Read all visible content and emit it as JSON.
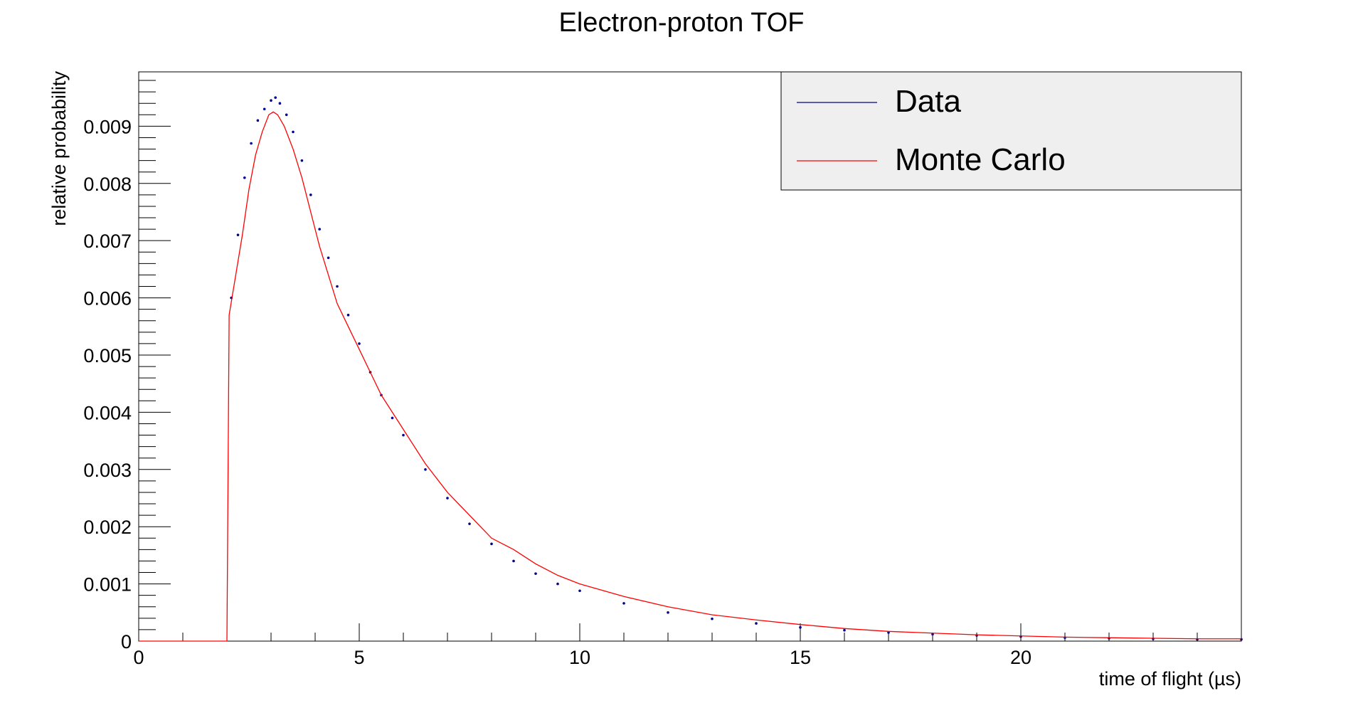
{
  "chart_data": {
    "type": "line",
    "title": "Electron-proton TOF",
    "xlabel": "time of flight (µs)",
    "ylabel": "relative probability",
    "xlim": [
      0,
      25
    ],
    "ylim": [
      0,
      0.00995
    ],
    "grid": false,
    "legend_position": "top-right",
    "x_tick_labels": [
      "0",
      "5",
      "10",
      "15",
      "20"
    ],
    "y_tick_labels": [
      "0",
      "0.001",
      "0.002",
      "0.003",
      "0.004",
      "0.005",
      "0.006",
      "0.007",
      "0.008",
      "0.009"
    ],
    "series": [
      {
        "name": "Data",
        "style": "markers",
        "color": "#00008b",
        "x": [
          2.1,
          2.25,
          2.4,
          2.55,
          2.7,
          2.85,
          3.0,
          3.1,
          3.2,
          3.35,
          3.5,
          3.7,
          3.9,
          4.1,
          4.3,
          4.5,
          4.75,
          5.0,
          5.25,
          5.5,
          5.75,
          6.0,
          6.5,
          7.0,
          7.5,
          8.0,
          8.5,
          9.0,
          9.5,
          10.0,
          11.0,
          12.0,
          13.0,
          14.0,
          15.0,
          16.0,
          17.0,
          18.0,
          19.0,
          20.0,
          21.0,
          22.0,
          23.0,
          24.0,
          25.0
        ],
        "y": [
          0.006,
          0.0071,
          0.0081,
          0.0087,
          0.0091,
          0.0093,
          0.00945,
          0.0095,
          0.0094,
          0.0092,
          0.0089,
          0.0084,
          0.0078,
          0.0072,
          0.0067,
          0.0062,
          0.0057,
          0.0052,
          0.0047,
          0.0043,
          0.0039,
          0.0036,
          0.003,
          0.0025,
          0.00205,
          0.0017,
          0.0014,
          0.00118,
          0.001,
          0.00088,
          0.00066,
          0.0005,
          0.00039,
          0.00031,
          0.00024,
          0.00019,
          0.00015,
          0.00012,
          0.0001,
          8e-05,
          6e-05,
          5e-05,
          4e-05,
          3e-05,
          3e-05
        ]
      },
      {
        "name": "Monte Carlo",
        "style": "line",
        "color": "#ff0000",
        "x": [
          0,
          2.0,
          2.05,
          2.2,
          2.35,
          2.5,
          2.65,
          2.8,
          2.95,
          3.05,
          3.15,
          3.3,
          3.5,
          3.7,
          3.9,
          4.1,
          4.3,
          4.5,
          4.75,
          5.0,
          5.25,
          5.5,
          5.75,
          6.0,
          6.5,
          7.0,
          7.5,
          8.0,
          8.5,
          9.0,
          9.5,
          10.0,
          11.0,
          12.0,
          13.0,
          14.0,
          15.0,
          16.0,
          17.0,
          18.0,
          19.0,
          20.0,
          21.0,
          22.0,
          23.0,
          24.0,
          25.0
        ],
        "y": [
          0,
          0,
          0.0057,
          0.0064,
          0.0071,
          0.0079,
          0.0085,
          0.0089,
          0.0092,
          0.00925,
          0.0092,
          0.009,
          0.0086,
          0.0081,
          0.0075,
          0.0069,
          0.0064,
          0.0059,
          0.0055,
          0.0051,
          0.0047,
          0.0043,
          0.004,
          0.0037,
          0.0031,
          0.0026,
          0.0022,
          0.0018,
          0.0016,
          0.00135,
          0.00115,
          0.001,
          0.00078,
          0.0006,
          0.00046,
          0.00037,
          0.00029,
          0.00022,
          0.00017,
          0.00014,
          0.00011,
          9e-05,
          7e-05,
          6e-05,
          5e-05,
          4e-05,
          4e-05
        ]
      }
    ]
  }
}
